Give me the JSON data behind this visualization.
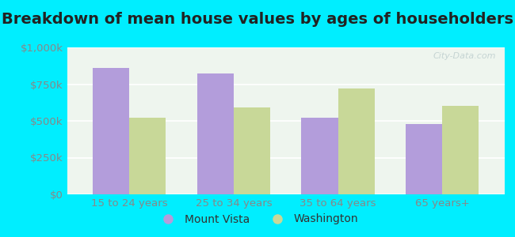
{
  "title": "Breakdown of mean house values by ages of householders",
  "categories": [
    "15 to 24 years",
    "25 to 34 years",
    "35 to 64 years",
    "65 years+"
  ],
  "series": {
    "Mount Vista": [
      860000,
      820000,
      520000,
      480000
    ],
    "Washington": [
      520000,
      590000,
      720000,
      600000
    ]
  },
  "colors": {
    "Mount Vista": "#b39ddb",
    "Washington": "#c8d898"
  },
  "ylim": [
    0,
    1000000
  ],
  "yticks": [
    0,
    250000,
    500000,
    750000,
    1000000
  ],
  "ytick_labels": [
    "$0",
    "$250k",
    "$500k",
    "$750k",
    "$1,000k"
  ],
  "bar_width": 0.35,
  "background_outer": "#00eeff",
  "background_inner": "#eef5ee",
  "title_fontsize": 14,
  "tick_fontsize": 9.5,
  "legend_fontsize": 10
}
